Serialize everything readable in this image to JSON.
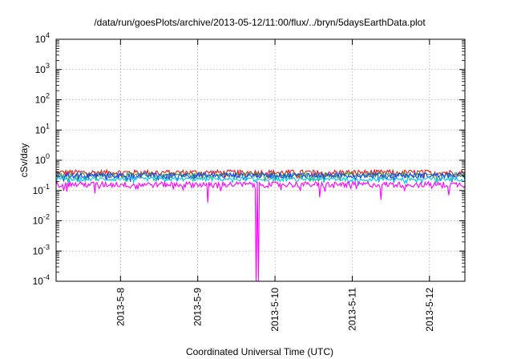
{
  "chart_data": {
    "type": "line",
    "title": "/data/run/goesPlots/archive/2013-05-12/11:00/flux/../bryn/5daysEarthData.plot",
    "xlabel": "Coordinated Universal Time (UTC)",
    "ylabel": "cSv/day",
    "y_scale": "log",
    "ylim": [
      0.0001,
      10000
    ],
    "y_ticks": [
      {
        "value": 0.0001,
        "base": "10",
        "exp": "-4"
      },
      {
        "value": 0.001,
        "base": "10",
        "exp": "-3"
      },
      {
        "value": 0.01,
        "base": "10",
        "exp": "-2"
      },
      {
        "value": 0.1,
        "base": "10",
        "exp": "-1"
      },
      {
        "value": 1,
        "base": "10",
        "exp": "0"
      },
      {
        "value": 10,
        "base": "10",
        "exp": "1"
      },
      {
        "value": 100,
        "base": "10",
        "exp": "2"
      },
      {
        "value": 1000,
        "base": "10",
        "exp": "3"
      },
      {
        "value": 10000,
        "base": "10",
        "exp": "4"
      }
    ],
    "xlim": [
      "2013-05-07 04:00",
      "2013-05-12 11:00"
    ],
    "x_ticks": [
      {
        "value": "2013-05-08 00:00",
        "label": "2013-5-8"
      },
      {
        "value": "2013-05-09 00:00",
        "label": "2013-5-9"
      },
      {
        "value": "2013-05-10 00:00",
        "label": "2013-5-10"
      },
      {
        "value": "2013-05-11 00:00",
        "label": "2013-5-11"
      },
      {
        "value": "2013-05-12 00:00",
        "label": "2013-5-12"
      }
    ],
    "grid": true,
    "legend": "none",
    "series": [
      {
        "color": "#e41a1c",
        "level": 0.4,
        "spread": 0.2
      },
      {
        "color": "#2ca02c",
        "level": 0.33,
        "spread": 0.18
      },
      {
        "color": "#1f3fff",
        "level": 0.32,
        "spread": 0.2
      },
      {
        "color": "#00c8e6",
        "level": 0.24,
        "spread": 0.15
      },
      {
        "color": "#ff00ff",
        "level": 0.16,
        "spread": 0.22
      }
    ],
    "dips": [
      {
        "time": "2013-05-09 18:00",
        "value": 0.0001,
        "series": 4
      },
      {
        "time": "2013-05-09 18:40",
        "value": 0.0001,
        "series": 4
      },
      {
        "time": "2013-05-09 03:00",
        "value": 0.04,
        "series": 4
      },
      {
        "time": "2013-05-10 14:00",
        "value": 0.06,
        "series": 4
      },
      {
        "time": "2013-05-11 09:00",
        "value": 0.05,
        "series": 4
      },
      {
        "time": "2013-05-07 16:00",
        "value": 0.08,
        "series": 4
      },
      {
        "time": "2013-05-12 06:00",
        "value": 0.07,
        "series": 4
      }
    ]
  }
}
